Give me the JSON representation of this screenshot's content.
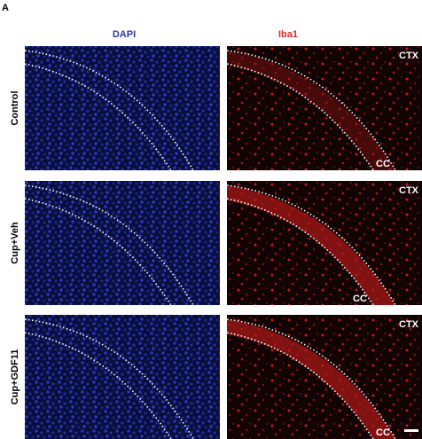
{
  "panel_label": "A",
  "columns": [
    "DAPI",
    "Iba1"
  ],
  "rows": [
    {
      "label": "Control",
      "ctx": "CTX",
      "cc": "CC"
    },
    {
      "label": "Cup+Veh",
      "ctx": "CTX",
      "cc": "CC"
    },
    {
      "label": "Cup+GDF11",
      "ctx": "CTX",
      "cc": "CC"
    }
  ]
}
